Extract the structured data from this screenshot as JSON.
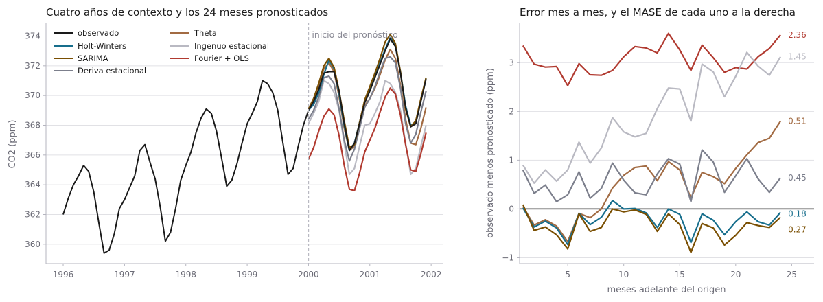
{
  "colors": {
    "observado": "#1a1a1a",
    "holt_winters": "#176e8c",
    "sarima": "#7a4f02",
    "deriva": "#7c7f8c",
    "theta": "#a26b43",
    "ingenuo": "#b9b9c2",
    "fourier": "#b13a30",
    "grid": "#e1e1e5",
    "text_muted": "#6b6b76"
  },
  "chart_data": [
    {
      "type": "line",
      "title": "Cuatro años de contexto y los 24 meses pronosticados",
      "xlabel": "",
      "ylabel": "CO2 (ppm)",
      "xlim": [
        1995.72,
        2002.2
      ],
      "ylim": [
        358.7,
        374.9
      ],
      "xticks": [
        1996,
        1997,
        1998,
        1999,
        2000,
        2001,
        2002
      ],
      "xtick_labels": [
        "1996",
        "1997",
        "1998",
        "1999",
        "2000",
        "2001",
        "2002"
      ],
      "yticks": [
        360,
        362,
        364,
        366,
        368,
        370,
        372,
        374
      ],
      "ytick_labels": [
        "360",
        "362",
        "364",
        "366",
        "368",
        "370",
        "372",
        "374"
      ],
      "grid": "horizontal",
      "legend_placement": "top-left",
      "annotation": {
        "text": "inicio del pronóstico",
        "x": 2000.0
      },
      "observado": {
        "name": "observado",
        "x_start": 1996.0,
        "step": 0.08333,
        "values": [
          362.0,
          363.1,
          364.0,
          364.6,
          365.3,
          364.9,
          363.5,
          361.4,
          359.4,
          359.6,
          360.7,
          362.4,
          363.0,
          363.8,
          364.6,
          366.3,
          366.7,
          365.5,
          364.4,
          362.5,
          360.2,
          360.8,
          362.4,
          364.3,
          365.3,
          366.2,
          367.5,
          368.5,
          369.1,
          368.8,
          367.6,
          365.8,
          363.9,
          364.3,
          365.4,
          366.8,
          368.1,
          368.8,
          369.6,
          371.0,
          370.8,
          370.2,
          369.0,
          366.8,
          364.7,
          365.1,
          366.6,
          368.0,
          369.0,
          369.6,
          370.4,
          371.5,
          371.6,
          371.6,
          370.3,
          368.1,
          366.3,
          366.8,
          368.1,
          369.5,
          370.3,
          371.2,
          372.1,
          373.0,
          373.8,
          373.3,
          371.5,
          369.2,
          367.9,
          368.1,
          369.6,
          371.1
        ]
      },
      "forecast": {
        "x_start": 2000.0,
        "step": 0.08333,
        "series": [
          {
            "name": "Holt-Winters",
            "key": "holt_winters",
            "values": [
              369.0,
              369.4,
              370.2,
              371.4,
              372.4,
              371.8,
              370.1,
              368.0,
              366.3,
              366.8,
              368.2,
              369.6,
              370.4,
              371.3,
              372.2,
              373.1,
              373.9,
              373.4,
              371.6,
              369.3,
              368.0,
              368.2,
              369.7,
              371.2
            ]
          },
          {
            "name": "SARIMA",
            "key": "sarima",
            "values": [
              369.1,
              369.8,
              370.8,
              372.0,
              372.5,
              371.9,
              370.3,
              368.3,
              366.5,
              366.7,
              368.2,
              369.7,
              370.6,
              371.5,
              372.5,
              373.6,
              374.1,
              373.5,
              371.6,
              369.1,
              367.9,
              368.3,
              369.8,
              371.2
            ]
          },
          {
            "name": "Deriva estacional",
            "key": "deriva",
            "values": [
              368.4,
              369.0,
              369.9,
              371.2,
              371.3,
              370.8,
              369.1,
              367.0,
              365.6,
              366.4,
              367.8,
              369.2,
              369.8,
              370.6,
              371.6,
              372.5,
              372.6,
              372.2,
              370.5,
              368.1,
              366.8,
              367.4,
              368.9,
              370.3
            ]
          },
          {
            "name": "Theta",
            "key": "theta",
            "values": [
              369.0,
              369.7,
              370.6,
              371.8,
              372.2,
              371.6,
              369.9,
              367.8,
              366.3,
              366.6,
              368.0,
              369.3,
              369.8,
              370.5,
              371.4,
              372.4,
              373.1,
              372.5,
              370.7,
              368.4,
              366.8,
              366.7,
              367.8,
              369.2
            ]
          },
          {
            "name": "Ingenuo estacional",
            "key": "ingenuo",
            "values": [
              368.1,
              368.8,
              369.6,
              371.0,
              370.8,
              370.2,
              369.0,
              366.8,
              364.7,
              365.1,
              366.6,
              368.0,
              368.1,
              368.8,
              369.6,
              371.0,
              370.8,
              370.2,
              369.0,
              366.8,
              364.7,
              365.1,
              366.6,
              368.0
            ]
          },
          {
            "name": "Fourier + OLS",
            "key": "fourier",
            "values": [
              365.7,
              366.5,
              367.6,
              368.6,
              369.1,
              368.7,
              367.3,
              365.3,
              363.7,
              363.6,
              364.8,
              366.2,
              367.0,
              367.8,
              368.9,
              369.9,
              370.5,
              370.1,
              368.7,
              366.7,
              365.0,
              364.9,
              366.1,
              367.5
            ]
          }
        ]
      }
    },
    {
      "type": "line",
      "title": "Error mes a mes, y el MASE de cada uno a la derecha",
      "xlabel": "meses adelante del origen",
      "ylabel": "observado menos pronosticado (ppm)",
      "xlim": [
        0.7,
        27.0
      ],
      "ylim": [
        -1.12,
        3.82
      ],
      "xticks": [
        5,
        10,
        15,
        20,
        25
      ],
      "xtick_labels": [
        "5",
        "10",
        "15",
        "20",
        "25"
      ],
      "yticks": [
        -1,
        0,
        1,
        2,
        3
      ],
      "ytick_labels": [
        "−1",
        "0",
        "1",
        "2",
        "3"
      ],
      "grid": "horizontal",
      "zero_line": 0,
      "x": [
        1,
        2,
        3,
        4,
        5,
        6,
        7,
        8,
        9,
        10,
        11,
        12,
        13,
        14,
        15,
        16,
        17,
        18,
        19,
        20,
        21,
        22,
        23,
        24
      ],
      "series": [
        {
          "key": "fourier",
          "mase": "2.36",
          "values": [
            3.35,
            2.97,
            2.91,
            2.92,
            2.53,
            2.98,
            2.75,
            2.74,
            2.84,
            3.12,
            3.33,
            3.3,
            3.2,
            3.6,
            3.26,
            2.84,
            3.36,
            3.1,
            2.8,
            2.9,
            2.87,
            3.12,
            3.29,
            3.57
          ]
        },
        {
          "key": "ingenuo",
          "mase": "1.45",
          "values": [
            0.9,
            0.53,
            0.8,
            0.57,
            0.8,
            1.37,
            0.94,
            1.25,
            1.87,
            1.58,
            1.48,
            1.55,
            2.06,
            2.48,
            2.46,
            1.8,
            2.97,
            2.81,
            2.3,
            2.72,
            3.21,
            2.93,
            2.74,
            3.12
          ]
        },
        {
          "key": "theta",
          "mase": "0.51",
          "values": [
            0.05,
            -0.33,
            -0.22,
            -0.35,
            -0.67,
            -0.09,
            -0.18,
            0.0,
            0.43,
            0.69,
            0.85,
            0.88,
            0.58,
            0.97,
            0.8,
            0.22,
            0.75,
            0.66,
            0.52,
            0.83,
            1.11,
            1.36,
            1.45,
            1.8
          ]
        },
        {
          "key": "deriva",
          "mase": "0.45",
          "values": [
            0.8,
            0.32,
            0.49,
            0.15,
            0.29,
            0.76,
            0.22,
            0.42,
            0.94,
            0.59,
            0.33,
            0.29,
            0.72,
            1.03,
            0.92,
            0.15,
            1.21,
            0.96,
            0.34,
            0.68,
            1.03,
            0.62,
            0.34,
            0.64
          ]
        },
        {
          "key": "holt_winters",
          "mase": "0.18",
          "values": [
            0.02,
            -0.37,
            -0.25,
            -0.39,
            -0.73,
            -0.09,
            -0.32,
            -0.17,
            0.17,
            0.0,
            0.01,
            -0.08,
            -0.38,
            0.0,
            -0.11,
            -0.69,
            -0.1,
            -0.23,
            -0.53,
            -0.26,
            -0.06,
            -0.26,
            -0.33,
            -0.07
          ]
        },
        {
          "key": "sarima",
          "mase": "0.27",
          "values": [
            0.09,
            -0.44,
            -0.37,
            -0.53,
            -0.82,
            -0.1,
            -0.46,
            -0.38,
            0.0,
            -0.06,
            -0.02,
            -0.11,
            -0.46,
            -0.1,
            -0.32,
            -0.89,
            -0.3,
            -0.39,
            -0.74,
            -0.54,
            -0.28,
            -0.34,
            -0.38,
            -0.17
          ]
        }
      ]
    }
  ]
}
